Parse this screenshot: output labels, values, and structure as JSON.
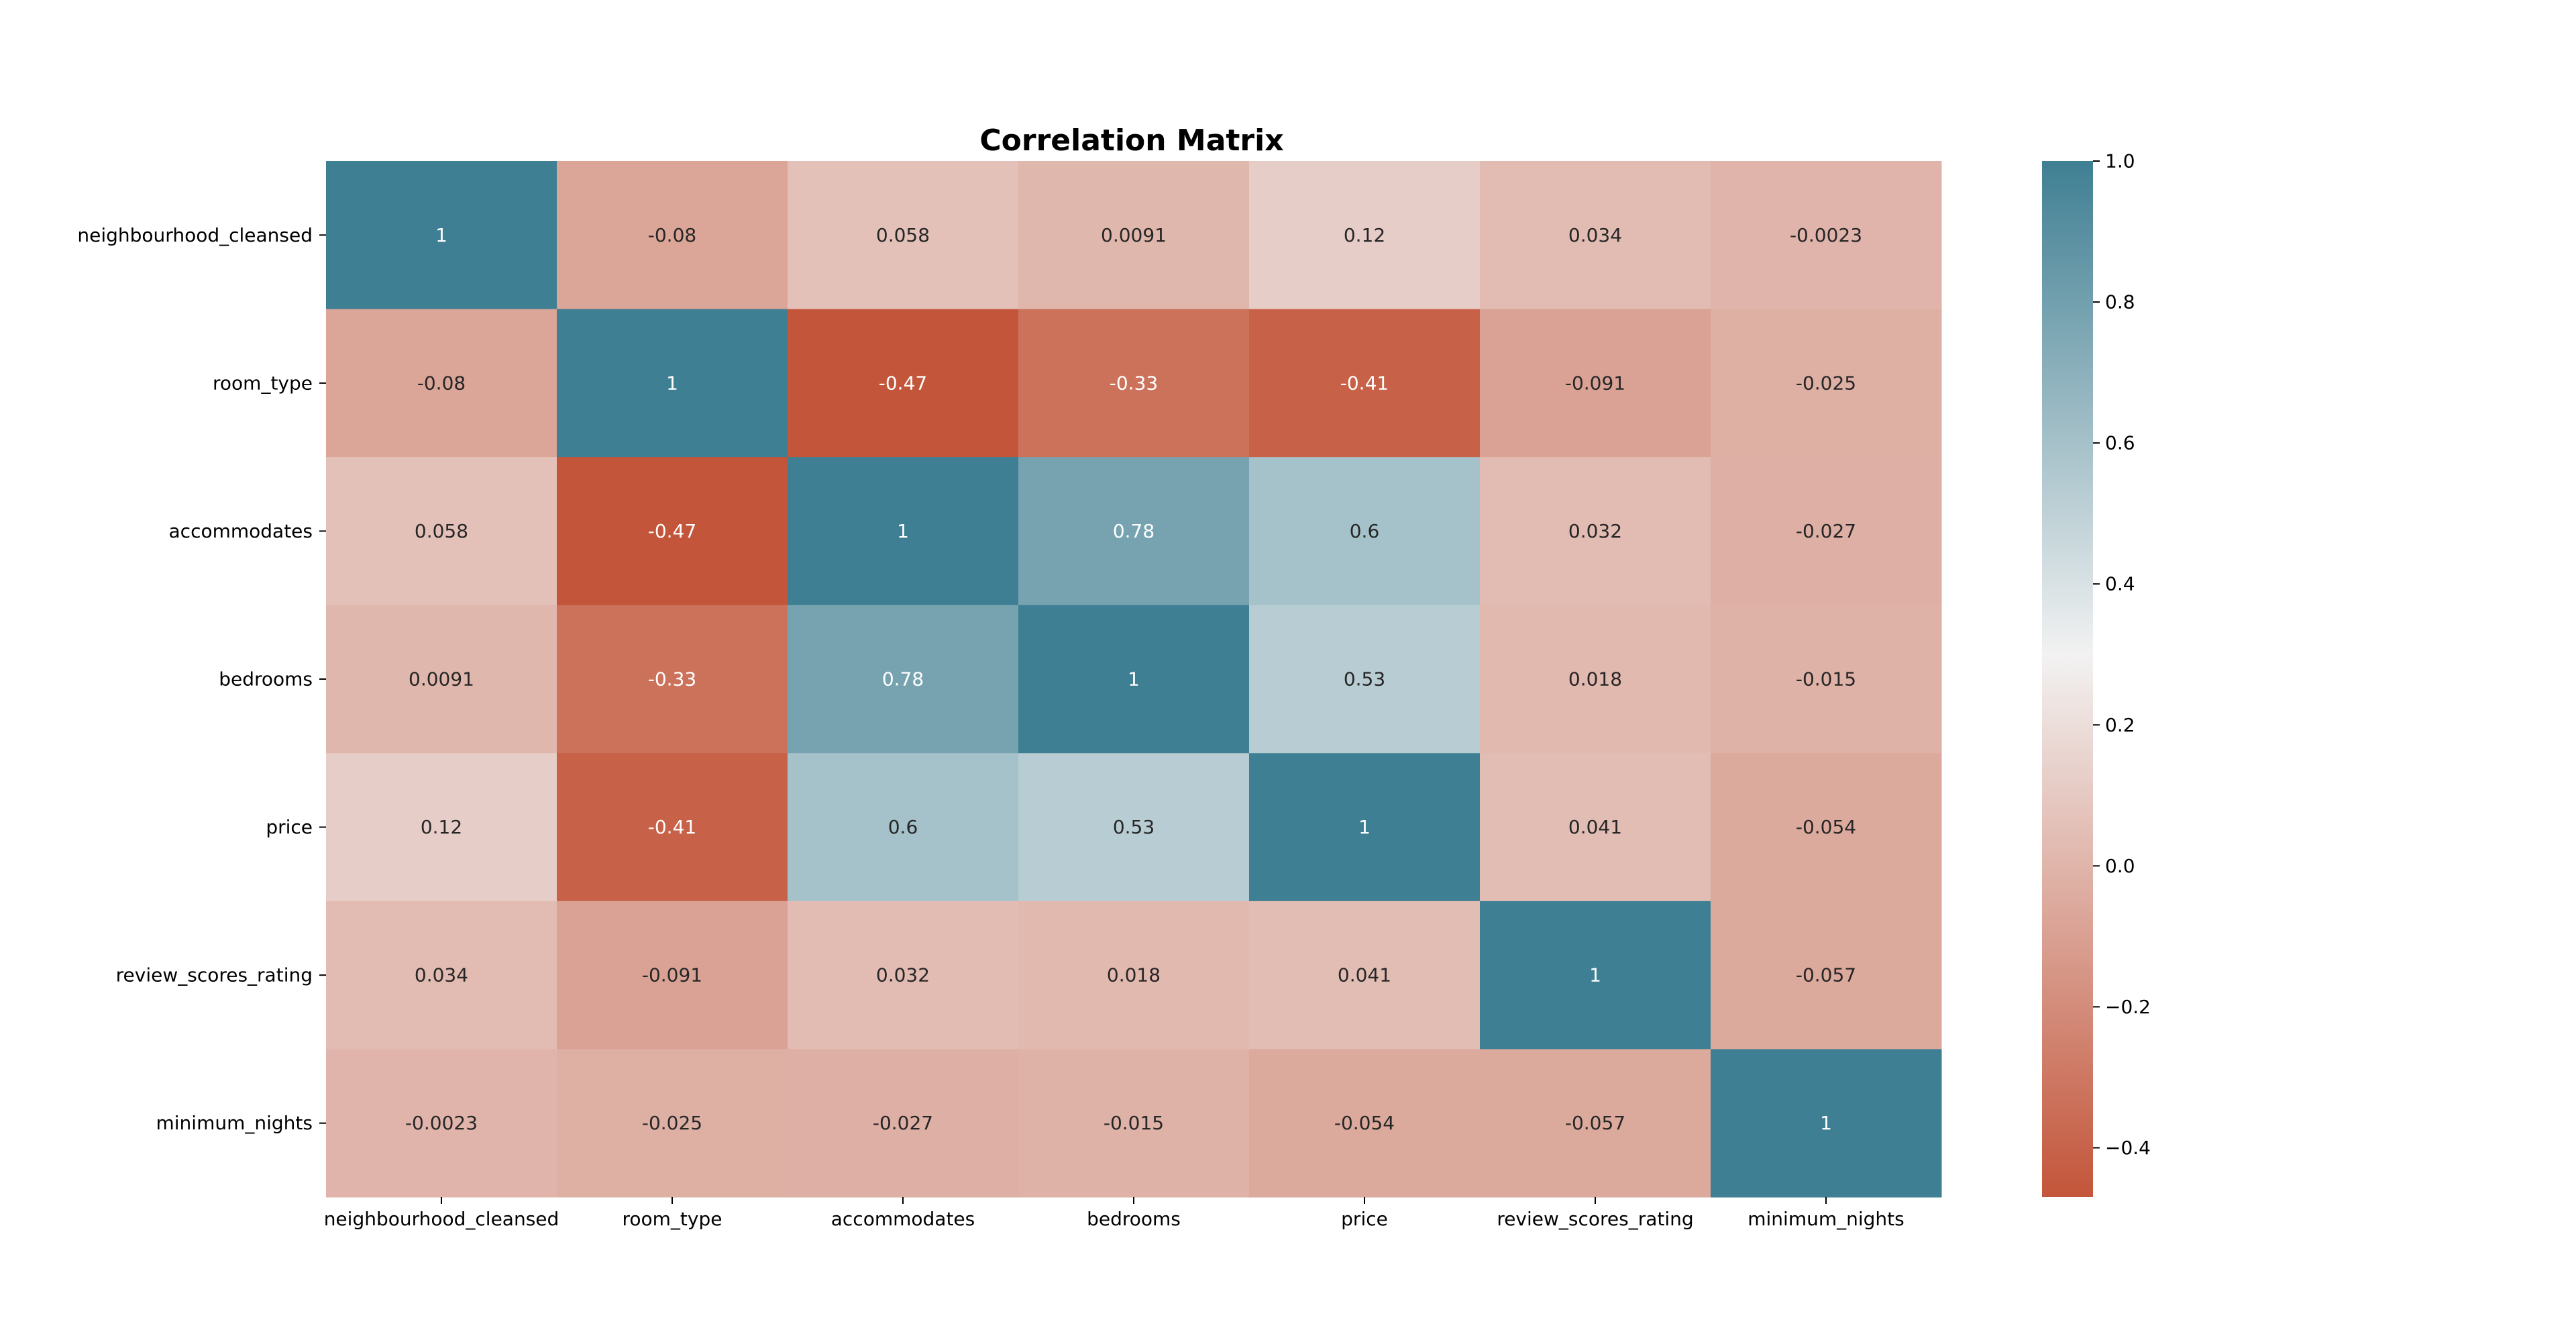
{
  "chart_data": {
    "type": "heatmap",
    "title": "Correlation Matrix",
    "xlabel": "",
    "ylabel": "",
    "labels": [
      "neighbourhood_cleansed",
      "room_type",
      "accommodates",
      "bedrooms",
      "price",
      "review_scores_rating",
      "minimum_nights"
    ],
    "matrix": [
      [
        "1",
        "-0.08",
        "0.058",
        "0.0091",
        "0.12",
        "0.034",
        "-0.0023"
      ],
      [
        "-0.08",
        "1",
        "-0.47",
        "-0.33",
        "-0.41",
        "-0.091",
        "-0.025"
      ],
      [
        "0.058",
        "-0.47",
        "1",
        "0.78",
        "0.6",
        "0.032",
        "-0.027"
      ],
      [
        "0.0091",
        "-0.33",
        "0.78",
        "1",
        "0.53",
        "0.018",
        "-0.015"
      ],
      [
        "0.12",
        "-0.41",
        "0.6",
        "0.53",
        "1",
        "0.041",
        "-0.054"
      ],
      [
        "0.034",
        "-0.091",
        "0.032",
        "0.018",
        "0.041",
        "1",
        "-0.057"
      ],
      [
        "-0.0023",
        "-0.025",
        "-0.027",
        "-0.015",
        "-0.054",
        "-0.057",
        "1"
      ]
    ],
    "vmin": -0.47,
    "vmax": 1.0,
    "colorbar": {
      "ticks": [
        "1.0",
        "0.8",
        "0.6",
        "0.4",
        "0.2",
        "0.0",
        "−0.2",
        "−0.4"
      ],
      "tick_values": [
        1.0,
        0.8,
        0.6,
        0.4,
        0.2,
        0.0,
        -0.2,
        -0.4
      ],
      "colors": {
        "negative": "#c3553a",
        "center": "#f2f2f2",
        "positive": "#3f7f93"
      }
    },
    "grid": false
  }
}
